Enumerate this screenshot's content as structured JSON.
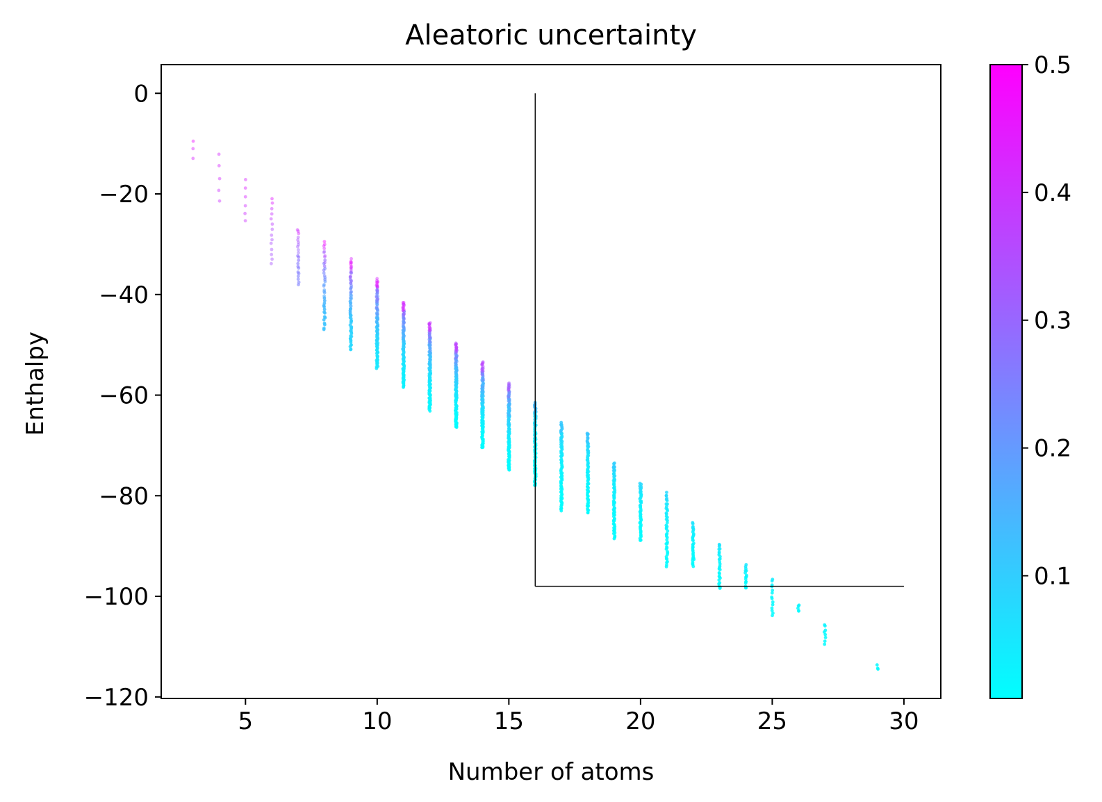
{
  "chart_data": {
    "type": "scatter",
    "title": "Aleatoric uncertainty",
    "xlabel": "Number of atoms",
    "ylabel": "Enthalpy",
    "xlim": [
      1.8,
      31.4
    ],
    "ylim": [
      -120.3,
      5.7
    ],
    "x_ticks": [
      5,
      10,
      15,
      20,
      25,
      30
    ],
    "y_ticks": [
      0,
      -20,
      -40,
      -60,
      -80,
      -100,
      -120
    ],
    "x_tick_labels": [
      "5",
      "10",
      "15",
      "20",
      "25",
      "30"
    ],
    "y_tick_labels": [
      "0",
      "−20",
      "−40",
      "−60",
      "−80",
      "−100",
      "−120"
    ],
    "grid": false,
    "colormap": "cool",
    "colormap_colors": [
      "#00ffff",
      "#ff00ff"
    ],
    "colorbar_range": [
      0.004,
      0.5
    ],
    "colorbar_ticks": [
      0.1,
      0.2,
      0.3,
      0.4,
      0.5
    ],
    "colorbar_tick_labels": [
      "0.1",
      "0.2",
      "0.3",
      "0.4",
      "0.5"
    ],
    "reference_lines": [
      {
        "x": [
          16,
          16
        ],
        "y": [
          0,
          -98
        ]
      },
      {
        "x": [
          16,
          30
        ],
        "y": [
          -98,
          -98
        ]
      }
    ],
    "point_groups": [
      {
        "x": 3,
        "enthalpy_range": [
          -13.0,
          -9.4
        ],
        "uncertainty_range": [
          0.42,
          0.48
        ],
        "count": 3
      },
      {
        "x": 4,
        "enthalpy_range": [
          -21.5,
          -12.2
        ],
        "uncertainty_range": [
          0.4,
          0.47
        ],
        "count": 5
      },
      {
        "x": 5,
        "enthalpy_range": [
          -25.5,
          -17.3
        ],
        "uncertainty_range": [
          0.4,
          0.47
        ],
        "count": 6
      },
      {
        "x": 6,
        "enthalpy_range": [
          -34.0,
          -21.0
        ],
        "uncertainty_range": [
          0.33,
          0.47
        ],
        "count": 14
      },
      {
        "x": 7,
        "enthalpy_range": [
          -38.0,
          -27.0
        ],
        "uncertainty_range": [
          0.25,
          0.45
        ],
        "count": 22
      },
      {
        "x": 8,
        "enthalpy_range": [
          -47.0,
          -29.5
        ],
        "uncertainty_range": [
          0.12,
          0.5
        ],
        "count": 40
      },
      {
        "x": 9,
        "enthalpy_range": [
          -51.0,
          -33.0
        ],
        "uncertainty_range": [
          0.08,
          0.5
        ],
        "count": 70
      },
      {
        "x": 10,
        "enthalpy_range": [
          -54.5,
          -37.0
        ],
        "uncertainty_range": [
          0.05,
          0.48
        ],
        "count": 100
      },
      {
        "x": 11,
        "enthalpy_range": [
          -58.5,
          -41.5
        ],
        "uncertainty_range": [
          0.03,
          0.45
        ],
        "count": 120
      },
      {
        "x": 12,
        "enthalpy_range": [
          -63.0,
          -45.5
        ],
        "uncertainty_range": [
          0.02,
          0.42
        ],
        "count": 130
      },
      {
        "x": 13,
        "enthalpy_range": [
          -66.5,
          -49.5
        ],
        "uncertainty_range": [
          0.01,
          0.4
        ],
        "count": 140
      },
      {
        "x": 14,
        "enthalpy_range": [
          -70.5,
          -53.5
        ],
        "uncertainty_range": [
          0.01,
          0.38
        ],
        "count": 140
      },
      {
        "x": 15,
        "enthalpy_range": [
          -75.0,
          -57.5
        ],
        "uncertainty_range": [
          0.01,
          0.35
        ],
        "count": 130
      },
      {
        "x": 16,
        "enthalpy_range": [
          -78.0,
          -61.5
        ],
        "uncertainty_range": [
          0.01,
          0.15
        ],
        "count": 110
      },
      {
        "x": 17,
        "enthalpy_range": [
          -83.0,
          -65.5
        ],
        "uncertainty_range": [
          0.01,
          0.12
        ],
        "count": 90
      },
      {
        "x": 18,
        "enthalpy_range": [
          -83.5,
          -67.5
        ],
        "uncertainty_range": [
          0.01,
          0.12
        ],
        "count": 80
      },
      {
        "x": 19,
        "enthalpy_range": [
          -88.5,
          -73.5
        ],
        "uncertainty_range": [
          0.01,
          0.1
        ],
        "count": 70
      },
      {
        "x": 20,
        "enthalpy_range": [
          -89.0,
          -77.5
        ],
        "uncertainty_range": [
          0.01,
          0.08
        ],
        "count": 55
      },
      {
        "x": 21,
        "enthalpy_range": [
          -94.0,
          -79.5
        ],
        "uncertainty_range": [
          0.01,
          0.08
        ],
        "count": 45
      },
      {
        "x": 22,
        "enthalpy_range": [
          -94.0,
          -85.5
        ],
        "uncertainty_range": [
          0.01,
          0.06
        ],
        "count": 35
      },
      {
        "x": 23,
        "enthalpy_range": [
          -98.5,
          -89.5
        ],
        "uncertainty_range": [
          0.01,
          0.06
        ],
        "count": 28
      },
      {
        "x": 24,
        "enthalpy_range": [
          -98.5,
          -93.8
        ],
        "uncertainty_range": [
          0.01,
          0.05
        ],
        "count": 16
      },
      {
        "x": 25,
        "enthalpy_range": [
          -104.0,
          -96.5
        ],
        "uncertainty_range": [
          0.01,
          0.04
        ],
        "count": 14
      },
      {
        "x": 26,
        "enthalpy_range": [
          -103.0,
          -101.8
        ],
        "uncertainty_range": [
          0.01,
          0.03
        ],
        "count": 5
      },
      {
        "x": 27,
        "enthalpy_range": [
          -109.5,
          -105.5
        ],
        "uncertainty_range": [
          0.01,
          0.03
        ],
        "count": 8
      },
      {
        "x": 29,
        "enthalpy_range": [
          -114.5,
          -113.8
        ],
        "uncertainty_range": [
          0.01,
          0.02
        ],
        "count": 3
      }
    ]
  }
}
